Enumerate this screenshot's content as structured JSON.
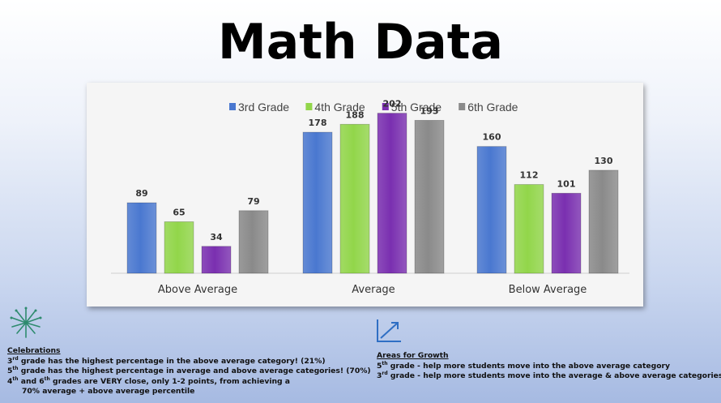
{
  "title": "Math Data",
  "colors": {
    "grade3": "#4a78d0",
    "grade4": "#92d64a",
    "grade5": "#7a2fb0",
    "grade6": "#8a8a8a"
  },
  "chart_data": {
    "type": "bar",
    "categories": [
      "Above Average",
      "Average",
      "Below Average"
    ],
    "series": [
      {
        "name": "3rd Grade",
        "values": [
          89,
          178,
          160
        ]
      },
      {
        "name": "4th Grade",
        "values": [
          65,
          188,
          112
        ]
      },
      {
        "name": "5th Grade",
        "values": [
          34,
          202,
          101
        ]
      },
      {
        "name": "6th Grade",
        "values": [
          79,
          193,
          130
        ]
      }
    ],
    "legend_position": "top",
    "grid": false,
    "ylim": [
      0,
      220
    ]
  },
  "celebrations": {
    "heading": "Celebrations",
    "line1": {
      "n": "3",
      "sup": "rd",
      "rest": " grade has the highest percentage in the above average category! (21%)"
    },
    "line2": {
      "n": "5",
      "sup": "th",
      "rest": " grade has the highest percentage in average and above average categories! (70%)"
    },
    "line3": {
      "n1": "4",
      "sup1": "th",
      "mid": " and 6",
      "sup2": "th",
      "rest": " grades are VERY close, only 1-2 points, from achieving a"
    },
    "line4": "70% average + above average percentile",
    "icon": "firework-icon"
  },
  "growth": {
    "heading": "Areas for Growth",
    "line1": {
      "n": "5",
      "sup": "th",
      "rest": " grade - help more students move into the above average category"
    },
    "line2": {
      "n": "3",
      "sup": "rd",
      "rest": " grade - help more students move into the average & above average categories"
    },
    "icon": "growth-chart-icon"
  }
}
